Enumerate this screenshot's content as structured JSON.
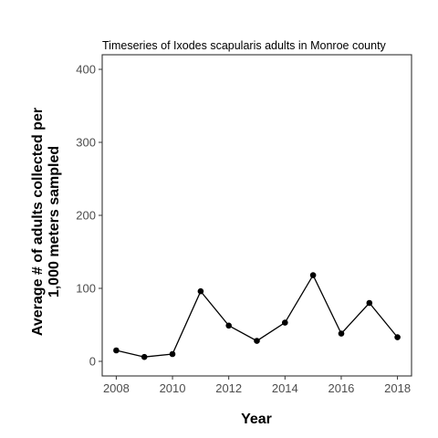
{
  "chart_data": {
    "type": "line",
    "title": "Timeseries of Ixodes scapularis adults in Monroe county",
    "xlabel": "Year",
    "ylabel_lines": [
      "Average # of adults collected per",
      "1,000 meters sampled"
    ],
    "x": [
      2008,
      2009,
      2010,
      2011,
      2012,
      2013,
      2014,
      2015,
      2016,
      2017,
      2018
    ],
    "values": [
      15,
      6,
      10,
      96,
      49,
      28,
      53,
      118,
      38,
      80,
      33
    ],
    "xlim": [
      2007.5,
      2018.5
    ],
    "ylim": [
      -20,
      420
    ],
    "xticks": [
      "2008",
      "2010",
      "2012",
      "2014",
      "2016",
      "2018"
    ],
    "yticks": [
      "0",
      "100",
      "200",
      "300",
      "400"
    ],
    "grid": false,
    "line_color": "#000000",
    "point_color": "#000000"
  }
}
